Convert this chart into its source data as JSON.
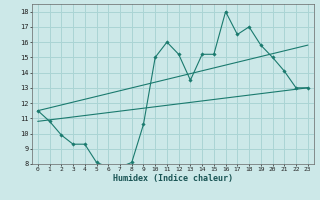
{
  "xlabel": "Humidex (Indice chaleur)",
  "xlim": [
    -0.5,
    23.5
  ],
  "ylim": [
    8,
    18.5
  ],
  "xticks": [
    0,
    1,
    2,
    3,
    4,
    5,
    6,
    7,
    8,
    9,
    10,
    11,
    12,
    13,
    14,
    15,
    16,
    17,
    18,
    19,
    20,
    21,
    22,
    23
  ],
  "yticks": [
    8,
    9,
    10,
    11,
    12,
    13,
    14,
    15,
    16,
    17,
    18
  ],
  "bg_color": "#cce8e8",
  "grid_color": "#aad4d4",
  "line_color": "#1a7a6e",
  "line1_x": [
    0,
    1,
    2,
    3,
    4,
    5,
    6,
    7,
    8,
    9,
    10,
    11,
    12,
    13,
    14,
    15,
    16,
    17,
    18,
    19,
    20,
    21,
    22,
    23
  ],
  "line1_y": [
    11.5,
    10.8,
    9.9,
    9.3,
    9.3,
    8.1,
    7.8,
    7.8,
    8.1,
    10.6,
    15.0,
    16.0,
    15.2,
    13.5,
    15.2,
    15.2,
    18.0,
    16.5,
    17.0,
    15.8,
    15.0,
    14.1,
    13.0,
    13.0
  ],
  "line2_x": [
    0,
    23
  ],
  "line2_y": [
    11.5,
    15.8
  ],
  "line3_x": [
    0,
    23
  ],
  "line3_y": [
    10.8,
    13.0
  ]
}
